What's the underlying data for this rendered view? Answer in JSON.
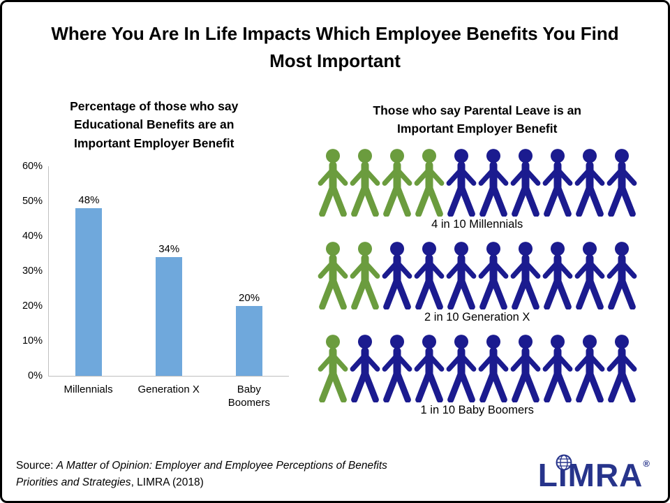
{
  "slide_title": "Where You Are In Life Impacts Which Employee Benefits You Find Most Important",
  "colors": {
    "bar": "#6FA8DC",
    "green": "#6B9C3E",
    "navy": "#1B1B8F",
    "logo_navy": "#27348B"
  },
  "chart_data": [
    {
      "type": "bar",
      "title": "Percentage of those who say Educational Benefits are an Important Employer Benefit",
      "categories": [
        "Millennials",
        "Generation X",
        "Baby Boomers"
      ],
      "categories_display": [
        "Millennials",
        "Generation X",
        "Baby\nBoomers"
      ],
      "values": [
        48,
        34,
        20
      ],
      "data_labels": [
        "48%",
        "34%",
        "20%"
      ],
      "xlabel": "",
      "ylabel": "",
      "ylim": [
        0,
        60
      ],
      "yticks": [
        "60%",
        "50%",
        "40%",
        "30%",
        "20%",
        "10%",
        "0%"
      ],
      "grid": false,
      "legend": false,
      "bar_color": "#6FA8DC"
    },
    {
      "type": "pictogram",
      "title": "Those who say Parental Leave is an Important Employer Benefit",
      "categories": [
        "Millennials",
        "Generation X",
        "Baby Boomers"
      ],
      "values": [
        4,
        2,
        1
      ],
      "out_of": 10,
      "row_labels": [
        "4 in 10 Millennials",
        "2 in 10 Generation X",
        "1 in 10 Baby Boomers"
      ],
      "highlight_color": "#6B9C3E",
      "base_color": "#1B1B8F"
    }
  ],
  "source": {
    "prefix": "Source: ",
    "italic_title": "A Matter of Opinion: Employer and Employee Perceptions of Benefits Priorities and Strategies",
    "suffix": ", LIMRA (2018)"
  },
  "logo": {
    "text": "LIMRA",
    "registered": "®"
  }
}
